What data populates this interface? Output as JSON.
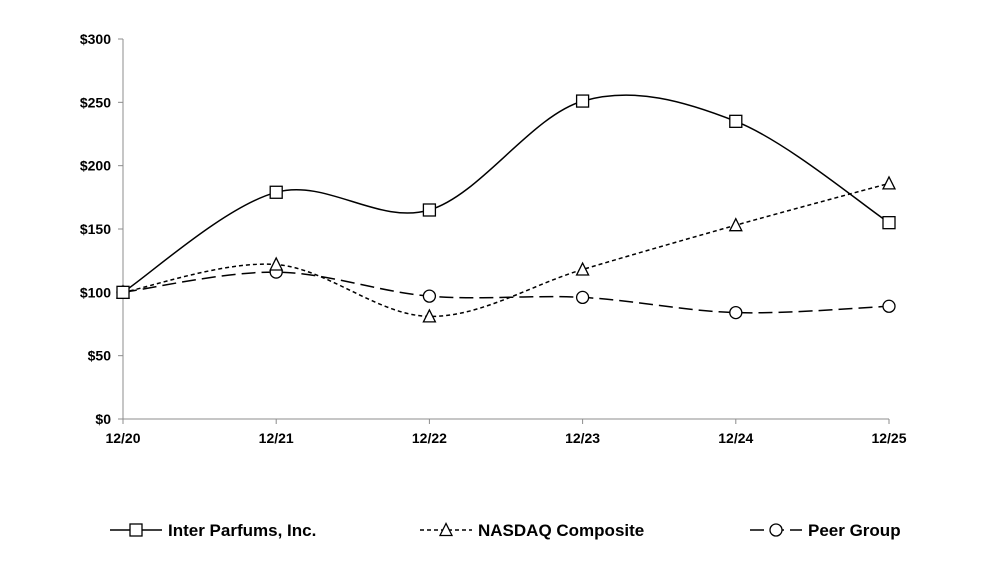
{
  "chart_data": {
    "type": "line",
    "title": "",
    "xlabel": "",
    "ylabel": "",
    "categories": [
      "12/20",
      "12/21",
      "12/22",
      "12/23",
      "12/24",
      "12/25"
    ],
    "ylim": [
      0,
      300
    ],
    "yticks": [
      0,
      50,
      100,
      150,
      200,
      250,
      300
    ],
    "ytick_labels": [
      "$0",
      "$50",
      "$100",
      "$150",
      "$200",
      "$250",
      "$300"
    ],
    "grid": false,
    "legend_position": "bottom",
    "series": [
      {
        "name": "Inter Parfums, Inc.",
        "values": [
          100,
          179,
          165,
          251,
          235,
          155
        ],
        "marker": "square",
        "dash": "solid",
        "color": "#000000"
      },
      {
        "name": "NASDAQ Composite",
        "values": [
          100,
          122,
          81,
          118,
          153,
          186
        ],
        "marker": "triangle",
        "dash": "short-dash",
        "color": "#000000"
      },
      {
        "name": "Peer Group",
        "values": [
          100,
          116,
          97,
          96,
          84,
          89
        ],
        "marker": "circle",
        "dash": "long-dash",
        "color": "#000000"
      }
    ]
  }
}
